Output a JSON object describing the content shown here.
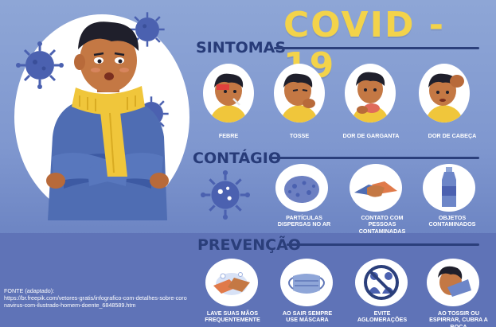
{
  "title": "COVID - 19",
  "sections": {
    "sintomas": "SINTOMAS",
    "contagio": "CONTÁGIO",
    "prevencao": "PREVENÇÃO"
  },
  "symptoms": [
    {
      "label": "FEBRE",
      "icon": "fever-face-icon"
    },
    {
      "label": "TOSSE",
      "icon": "cough-face-icon"
    },
    {
      "label": "DOR DE GARGANTA",
      "icon": "sore-throat-face-icon"
    },
    {
      "label": "DOR DE CABEÇA",
      "icon": "headache-face-icon"
    }
  ],
  "contagion": [
    {
      "label": "PARTÍCULAS DISPERSAS NO AR",
      "icon": "airborne-particles-icon"
    },
    {
      "label": "CONTATO COM PESSOAS CONTAMINADAS",
      "icon": "handshake-icon"
    },
    {
      "label": "OBJETOS CONTAMINADOS",
      "icon": "bottle-icon"
    }
  ],
  "prevention": [
    {
      "label": "LAVE SUAS MÃOS FREQUENTEMENTE",
      "icon": "handwashing-icon"
    },
    {
      "label": "AO SAIR SEMPRE USE MÁSCARA",
      "icon": "face-mask-icon"
    },
    {
      "label": "EVITE AGLOMERAÇÕES",
      "icon": "no-crowds-icon"
    },
    {
      "label": "AO TOSSIR OU ESPIRRAR, CUBRA A BOCA",
      "icon": "cover-cough-icon"
    }
  ],
  "source": {
    "heading": "FONTE (adaptado):",
    "url": "https://br.freepik.com/vetores-gratis/infografico-com-detalhes-sobre-coronavirus-com-ilustrado-homem-doente_6848589.htm"
  },
  "colors": {
    "title_yellow": "#f3d34a",
    "heading_navy": "#273b78",
    "virus_blue": "#4b61b0",
    "sweater_blue": "#4f6db3",
    "scarf_yellow": "#f0c63b"
  }
}
